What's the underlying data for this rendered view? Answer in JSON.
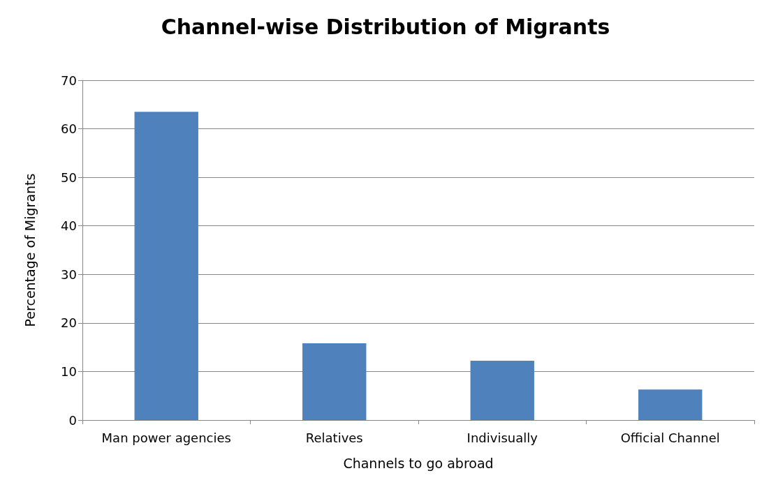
{
  "chart_data": {
    "type": "bar",
    "title": "Channel-wise Distribution of Migrants",
    "xlabel": "Channels to go abroad",
    "ylabel": "Percentage of Migrants",
    "categories": [
      "Man power agencies",
      "Relatives",
      "Indivisually",
      "Official Channel"
    ],
    "values": [
      63.5,
      15.8,
      12.2,
      6.3
    ],
    "color": "#4f81bd",
    "ylim": [
      0,
      70
    ],
    "yticks": [
      0,
      10,
      20,
      30,
      40,
      50,
      60,
      70
    ],
    "grid": "y"
  }
}
